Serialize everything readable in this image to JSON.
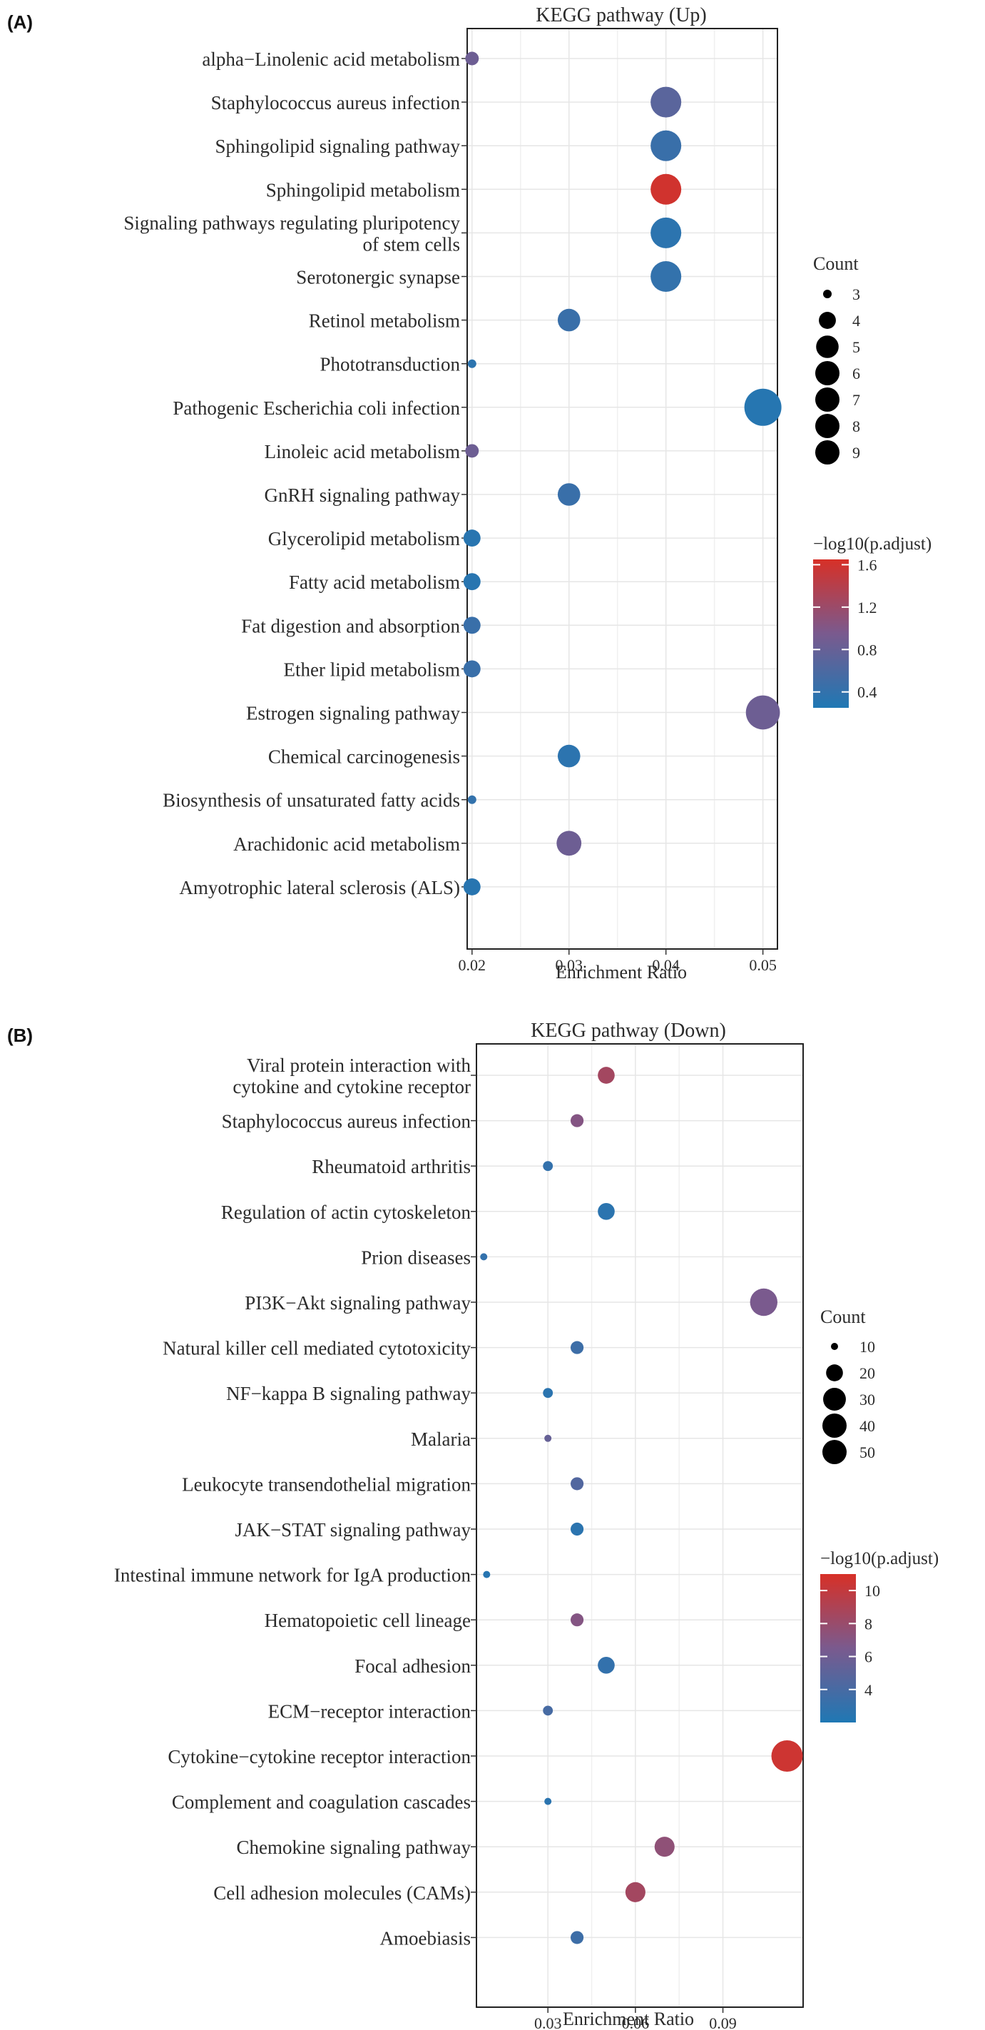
{
  "panels": [
    {
      "panel_label": "(A)",
      "chart_data": {
        "type": "scatter",
        "title": "KEGG pathway (Up)",
        "xlabel": "Enrichment Ratio",
        "ylabel": "",
        "xlim": [
          0.0195,
          0.0515
        ],
        "xticks": [
          0.02,
          0.03,
          0.04,
          0.05
        ],
        "xtick_labels": [
          "0.02",
          "0.03",
          "0.04",
          "0.05"
        ],
        "grid": true,
        "legend_position": "right",
        "points": [
          {
            "term": "alpha−Linolenic acid metabolism",
            "x": 0.02,
            "count": 3.5,
            "neglog10padj": 0.85
          },
          {
            "term": "Staphylococcus aureus infection",
            "x": 0.04,
            "count": 7,
            "neglog10padj": 0.7
          },
          {
            "term": "Sphingolipid signaling pathway",
            "x": 0.04,
            "count": 7,
            "neglog10padj": 0.45
          },
          {
            "term": "Sphingolipid metabolism",
            "x": 0.04,
            "count": 7,
            "neglog10padj": 1.6
          },
          {
            "term": "Signaling pathways regulating pluripotency\nof stem cells",
            "x": 0.04,
            "count": 7,
            "neglog10padj": 0.35
          },
          {
            "term": "Serotonergic synapse",
            "x": 0.04,
            "count": 7,
            "neglog10padj": 0.4
          },
          {
            "term": "Retinol metabolism",
            "x": 0.03,
            "count": 5,
            "neglog10padj": 0.45
          },
          {
            "term": "Phototransduction",
            "x": 0.02,
            "count": 3,
            "neglog10padj": 0.35
          },
          {
            "term": "Pathogenic Escherichia coli infection",
            "x": 0.05,
            "count": 9,
            "neglog10padj": 0.3
          },
          {
            "term": "Linoleic acid metabolism",
            "x": 0.02,
            "count": 3.5,
            "neglog10padj": 0.85
          },
          {
            "term": "GnRH signaling pathway",
            "x": 0.03,
            "count": 5,
            "neglog10padj": 0.45
          },
          {
            "term": "Glycerolipid metabolism",
            "x": 0.02,
            "count": 4,
            "neglog10padj": 0.32
          },
          {
            "term": "Fatty acid metabolism",
            "x": 0.02,
            "count": 4,
            "neglog10padj": 0.32
          },
          {
            "term": "Fat digestion and absorption",
            "x": 0.02,
            "count": 4,
            "neglog10padj": 0.45
          },
          {
            "term": "Ether lipid metabolism",
            "x": 0.02,
            "count": 4,
            "neglog10padj": 0.45
          },
          {
            "term": "Estrogen signaling pathway",
            "x": 0.05,
            "count": 8,
            "neglog10padj": 0.85
          },
          {
            "term": "Chemical carcinogenesis",
            "x": 0.03,
            "count": 5,
            "neglog10padj": 0.35
          },
          {
            "term": "Biosynthesis of unsaturated fatty acids",
            "x": 0.02,
            "count": 3,
            "neglog10padj": 0.4
          },
          {
            "term": "Arachidonic acid metabolism",
            "x": 0.03,
            "count": 5.5,
            "neglog10padj": 0.85
          },
          {
            "term": "Amyotrophic lateral sclerosis (ALS)",
            "x": 0.02,
            "count": 4,
            "neglog10padj": 0.32
          }
        ],
        "size_legend": {
          "title": "Count",
          "values": [
            3,
            4,
            5,
            6,
            7,
            8,
            9
          ]
        },
        "color_legend": {
          "title": "−log10(p.adjust)",
          "range": [
            0.25,
            1.65
          ],
          "ticks": [
            0.4,
            0.8,
            1.2,
            1.6
          ],
          "tick_labels": [
            "0.4",
            "0.8",
            "1.2",
            "1.6"
          ],
          "low_color": "#1f78b4",
          "mid_color": "#7a5a8e",
          "high_color": "#d73027"
        }
      }
    },
    {
      "panel_label": "(B)",
      "chart_data": {
        "type": "scatter",
        "title": "KEGG pathway (Down)",
        "xlabel": "Enrichment Ratio",
        "ylabel": "",
        "xlim": [
          0.0055,
          0.1175
        ],
        "xticks": [
          0.03,
          0.06,
          0.09
        ],
        "xtick_labels": [
          "0.03",
          "0.06",
          "0.09"
        ],
        "grid": true,
        "legend_position": "right",
        "points": [
          {
            "term": "Viral protein interaction with\ncytokine and cytokine receptor",
            "x": 0.05,
            "count": 20,
            "neglog10padj": 8.5
          },
          {
            "term": "Staphylococcus aureus infection",
            "x": 0.04,
            "count": 15,
            "neglog10padj": 7.0
          },
          {
            "term": "Rheumatoid arthritis",
            "x": 0.03,
            "count": 12,
            "neglog10padj": 3.0
          },
          {
            "term": "Regulation of actin cytoskeleton",
            "x": 0.05,
            "count": 20,
            "neglog10padj": 2.6
          },
          {
            "term": "Prion diseases",
            "x": 0.008,
            "count": 4,
            "neglog10padj": 3.0
          },
          {
            "term": "PI3K−Akt signaling pathway",
            "x": 0.104,
            "count": 40,
            "neglog10padj": 6.5
          },
          {
            "term": "Natural killer cell mediated cytotoxicity",
            "x": 0.04,
            "count": 15,
            "neglog10padj": 3.5
          },
          {
            "term": "NF−kappa B signaling pathway",
            "x": 0.03,
            "count": 12,
            "neglog10padj": 2.6
          },
          {
            "term": "Malaria",
            "x": 0.03,
            "count": 10,
            "neglog10padj": 5.5
          },
          {
            "term": "Leukocyte transendothelial migration",
            "x": 0.04,
            "count": 15,
            "neglog10padj": 4.5
          },
          {
            "term": "JAK−STAT signaling pathway",
            "x": 0.04,
            "count": 15,
            "neglog10padj": 2.6
          },
          {
            "term": "Intestinal immune network for IgA production",
            "x": 0.009,
            "count": 6,
            "neglog10padj": 2.4
          },
          {
            "term": "Hematopoietic cell lineage",
            "x": 0.04,
            "count": 15,
            "neglog10padj": 7.0
          },
          {
            "term": "Focal adhesion",
            "x": 0.05,
            "count": 20,
            "neglog10padj": 3.0
          },
          {
            "term": "ECM−receptor interaction",
            "x": 0.03,
            "count": 12,
            "neglog10padj": 4.0
          },
          {
            "term": "Cytokine−cytokine receptor interaction",
            "x": 0.112,
            "count": 50,
            "neglog10padj": 10.5
          },
          {
            "term": "Complement and coagulation cascades",
            "x": 0.03,
            "count": 10,
            "neglog10padj": 2.6
          },
          {
            "term": "Chemokine signaling pathway",
            "x": 0.07,
            "count": 25,
            "neglog10padj": 7.5
          },
          {
            "term": "Cell adhesion molecules (CAMs)",
            "x": 0.06,
            "count": 25,
            "neglog10padj": 8.5
          },
          {
            "term": "Amoebiasis",
            "x": 0.04,
            "count": 15,
            "neglog10padj": 3.5
          }
        ],
        "size_legend": {
          "title": "Count",
          "values": [
            10,
            20,
            30,
            40,
            50
          ]
        },
        "color_legend": {
          "title": "−log10(p.adjust)",
          "range": [
            2.0,
            11.0
          ],
          "ticks": [
            4,
            6,
            8,
            10
          ],
          "tick_labels": [
            "4",
            "6",
            "8",
            "10"
          ],
          "low_color": "#1f78b4",
          "mid_color": "#7a5a8e",
          "high_color": "#d73027"
        }
      }
    }
  ]
}
